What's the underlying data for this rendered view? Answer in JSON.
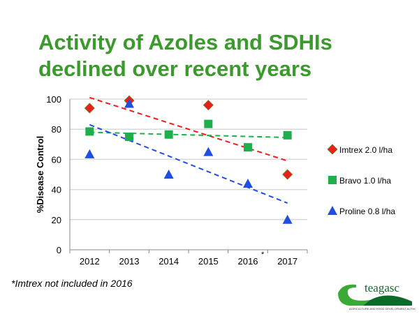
{
  "title": "Activity of Azoles and SDHIs declined over recent years",
  "footnote": "*Imtrex not included in 2016",
  "logo": {
    "text": "teagasc",
    "tagline": "Agriculture and Food Development Authority"
  },
  "colors": {
    "title": "#3b9a2c",
    "imtrex": "#ee1c1c",
    "bravo": "#1fae4b",
    "proline": "#1f4fe0"
  },
  "chart_data": {
    "type": "scatter",
    "ylabel": "%Disease Control",
    "xlabel": "",
    "categories": [
      "2012",
      "2013",
      "2014",
      "2015",
      "2016",
      "2017"
    ],
    "category_annotation": {
      "2016": "*"
    },
    "ylim": [
      0,
      100
    ],
    "yticks": [
      0,
      20,
      40,
      60,
      80,
      100
    ],
    "grid": true,
    "legend": "right",
    "series": [
      {
        "name": "Imtrex 2.0 l/ha",
        "marker": "diamond",
        "color": "#ee1c1c",
        "values": [
          94,
          99,
          null,
          96,
          null,
          50
        ],
        "trend": [
          101,
          59
        ]
      },
      {
        "name": "Bravo 1.0 l/ha",
        "marker": "square",
        "color": "#1fae4b",
        "values": [
          78.5,
          75,
          76.5,
          83.5,
          68,
          76
        ],
        "trend": [
          78,
          74.5
        ]
      },
      {
        "name": "Proline 0.8 l/ha",
        "marker": "triangle",
        "color": "#1f4fe0",
        "values": [
          63.5,
          97,
          50,
          65,
          44,
          20
        ],
        "trend": [
          83,
          31
        ]
      }
    ]
  }
}
